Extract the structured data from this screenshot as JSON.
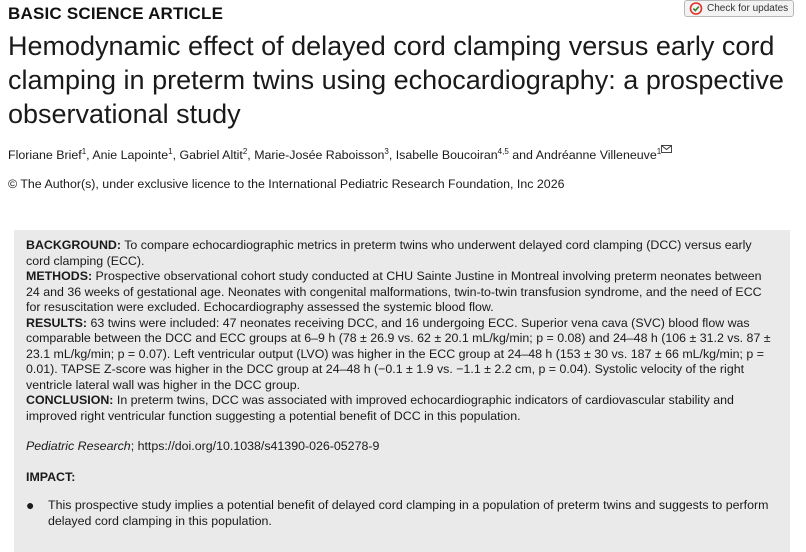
{
  "header": {
    "article_type": "BASIC SCIENCE ARTICLE",
    "check_updates_label": "Check for updates"
  },
  "article": {
    "title": "Hemodynamic effect of delayed cord clamping versus early cord clamping in preterm twins using echocardiography: a prospective observational study",
    "authors": [
      {
        "name": "Floriane Brief",
        "aff": "1"
      },
      {
        "name": "Anie Lapointe",
        "aff": "1"
      },
      {
        "name": "Gabriel Altit",
        "aff": "2"
      },
      {
        "name": "Marie-Josée Raboisson",
        "aff": "3"
      },
      {
        "name": "Isabelle Boucoiran",
        "aff": "4,5"
      },
      {
        "name": "Andréanne Villeneuve",
        "aff": "1"
      }
    ],
    "author_and": "and",
    "copyright": "© The Author(s), under exclusive licence to the International Pediatric Research Foundation, Inc 2026"
  },
  "abstract": {
    "background_head": "BACKGROUND:",
    "background": "To compare echocardiographic metrics in preterm twins who underwent delayed cord clamping (DCC) versus early cord clamping (ECC).",
    "methods_head": "METHODS:",
    "methods": "Prospective observational cohort study conducted at CHU Sainte Justine in Montreal involving preterm neonates between 24 and 36 weeks of gestational age. Neonates with congenital malformations, twin-to-twin transfusion syndrome, and the need of ECC for resuscitation were excluded. Echocardiography assessed the systemic blood flow.",
    "results_head": "RESULTS:",
    "results": "63 twins were included: 47 neonates receiving DCC, and 16 undergoing ECC. Superior vena cava (SVC) blood flow was comparable between the DCC and ECC groups at 6–9 h (78 ± 26.9 vs. 62 ± 20.1 mL/kg/min; p = 0.08) and 24–48 h (106 ± 31.2 vs. 87 ± 23.1 mL/kg/min; p = 0.07). Left ventricular output (LVO) was higher in the ECC group at 24–48 h (153 ± 30 vs. 187 ± 66 mL/kg/min; p = 0.01). TAPSE Z-score was higher in the DCC group at 24–48 h (−0.1 ± 1.9 vs. −1.1 ± 2.2 cm, p = 0.04). Systolic velocity of the right ventricle lateral wall was higher in the DCC group.",
    "conclusion_head": "CONCLUSION:",
    "conclusion": "In preterm twins, DCC was associated with improved echocardiographic indicators of cardiovascular stability and improved right ventricular function suggesting a potential benefit of DCC in this population.",
    "journal": "Pediatric Research",
    "doi_text": "; https://doi.org/10.1038/s41390-026-05278-9",
    "impact_head": "IMPACT:",
    "impact_items": [
      "This prospective study implies a potential benefit of delayed cord clamping in a population of preterm twins and suggests to perform delayed cord clamping in this population."
    ]
  },
  "colors": {
    "abstract_bg": "#eaeaea",
    "text": "#1a1a1a"
  }
}
